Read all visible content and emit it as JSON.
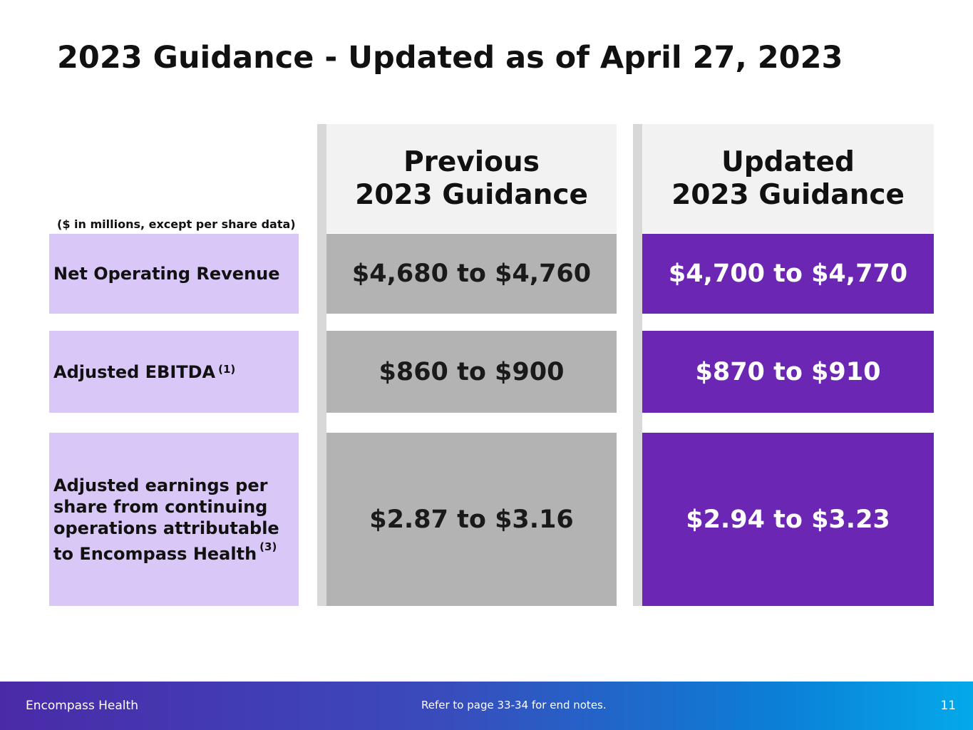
{
  "title": "2023 Guidance - Updated as of April 27, 2023",
  "units_note": "($ in millions, except per share data)",
  "columns": {
    "previous": {
      "line1": "Previous",
      "line2": "2023 Guidance"
    },
    "updated": {
      "line1": "Updated",
      "line2": "2023 Guidance"
    }
  },
  "rows": [
    {
      "label": "Net Operating Revenue",
      "note": "",
      "previous": "$4,680 to $4,760",
      "updated": "$4,700 to $4,770"
    },
    {
      "label": "Adjusted EBITDA",
      "note": "(1)",
      "previous": "$860 to $900",
      "updated": "$870 to $910"
    },
    {
      "label_lines": [
        "Adjusted earnings per",
        "share from continuing",
        "operations attributable",
        "to Encompass Health"
      ],
      "note": "(3)",
      "previous": "$2.87 to $3.16",
      "updated": "$2.94 to $3.23"
    }
  ],
  "footer": {
    "company": "Encompass Health",
    "note": "Refer to page 33-34 for end notes.",
    "page": "11"
  },
  "colors": {
    "label_bg": "#d9c7f7",
    "previous_bg": "#b3b3b3",
    "updated_bg": "#6b27b4",
    "header_bg": "#f2f2f2"
  }
}
